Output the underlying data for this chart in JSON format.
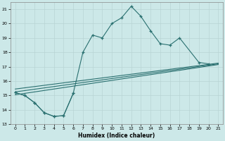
{
  "xlabel": "Humidex (Indice chaleur)",
  "xlim": [
    -0.5,
    21.5
  ],
  "ylim": [
    13,
    21.5
  ],
  "yticks": [
    13,
    14,
    15,
    16,
    17,
    18,
    19,
    20,
    21
  ],
  "xticks": [
    0,
    1,
    2,
    3,
    4,
    5,
    6,
    7,
    8,
    9,
    10,
    11,
    12,
    13,
    14,
    15,
    16,
    17,
    18,
    19,
    20,
    21
  ],
  "bg_color": "#cce8e8",
  "grid_color": "#b8d4d4",
  "line_color": "#2a7070",
  "main_curve_x": [
    0,
    1,
    2,
    3,
    4,
    5,
    6,
    7,
    8,
    9,
    10,
    11,
    12,
    13,
    14,
    15,
    16,
    17,
    19,
    20
  ],
  "main_curve_y": [
    15.2,
    15.0,
    14.5,
    13.8,
    13.55,
    13.6,
    15.15,
    18.0,
    19.2,
    19.0,
    20.0,
    20.4,
    21.2,
    20.5,
    19.5,
    18.6,
    18.5,
    19.0,
    17.3,
    17.2
  ],
  "dip_curve_x": [
    0,
    1,
    2,
    3,
    4,
    5,
    6
  ],
  "dip_curve_y": [
    15.2,
    15.0,
    14.5,
    13.8,
    13.55,
    13.6,
    15.15
  ],
  "straight_lines": [
    {
      "x": [
        0,
        21
      ],
      "y": [
        15.05,
        17.15
      ]
    },
    {
      "x": [
        0,
        21
      ],
      "y": [
        15.25,
        17.2
      ]
    },
    {
      "x": [
        0,
        21
      ],
      "y": [
        15.45,
        17.25
      ]
    }
  ]
}
